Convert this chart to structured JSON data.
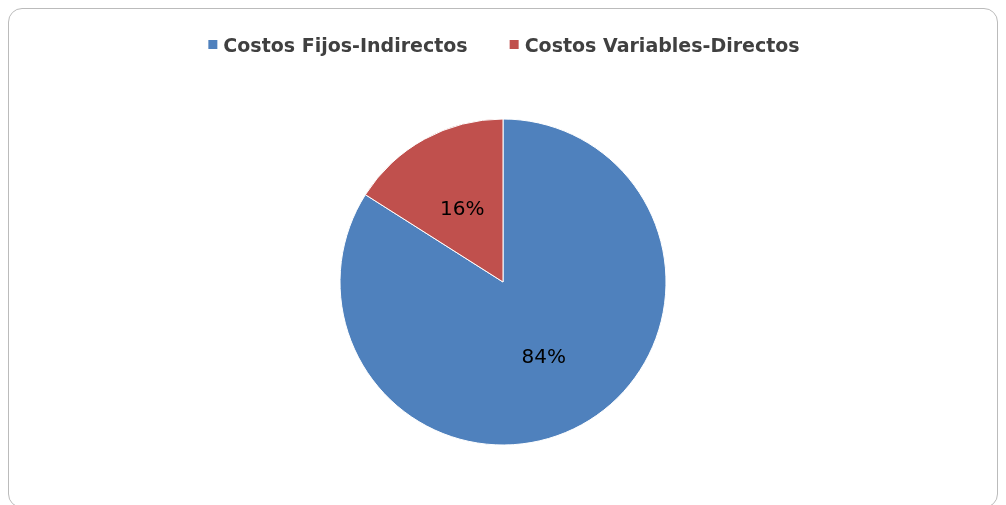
{
  "chart_data": {
    "type": "pie",
    "categories": [
      "Costos Fijos-Indirectos",
      "Costos Variables-Directos"
    ],
    "values": [
      84,
      16
    ],
    "colors": [
      "#4f81bd",
      "#c0504d"
    ],
    "legend": "top",
    "value_labels": [
      "84%",
      "16%"
    ]
  }
}
